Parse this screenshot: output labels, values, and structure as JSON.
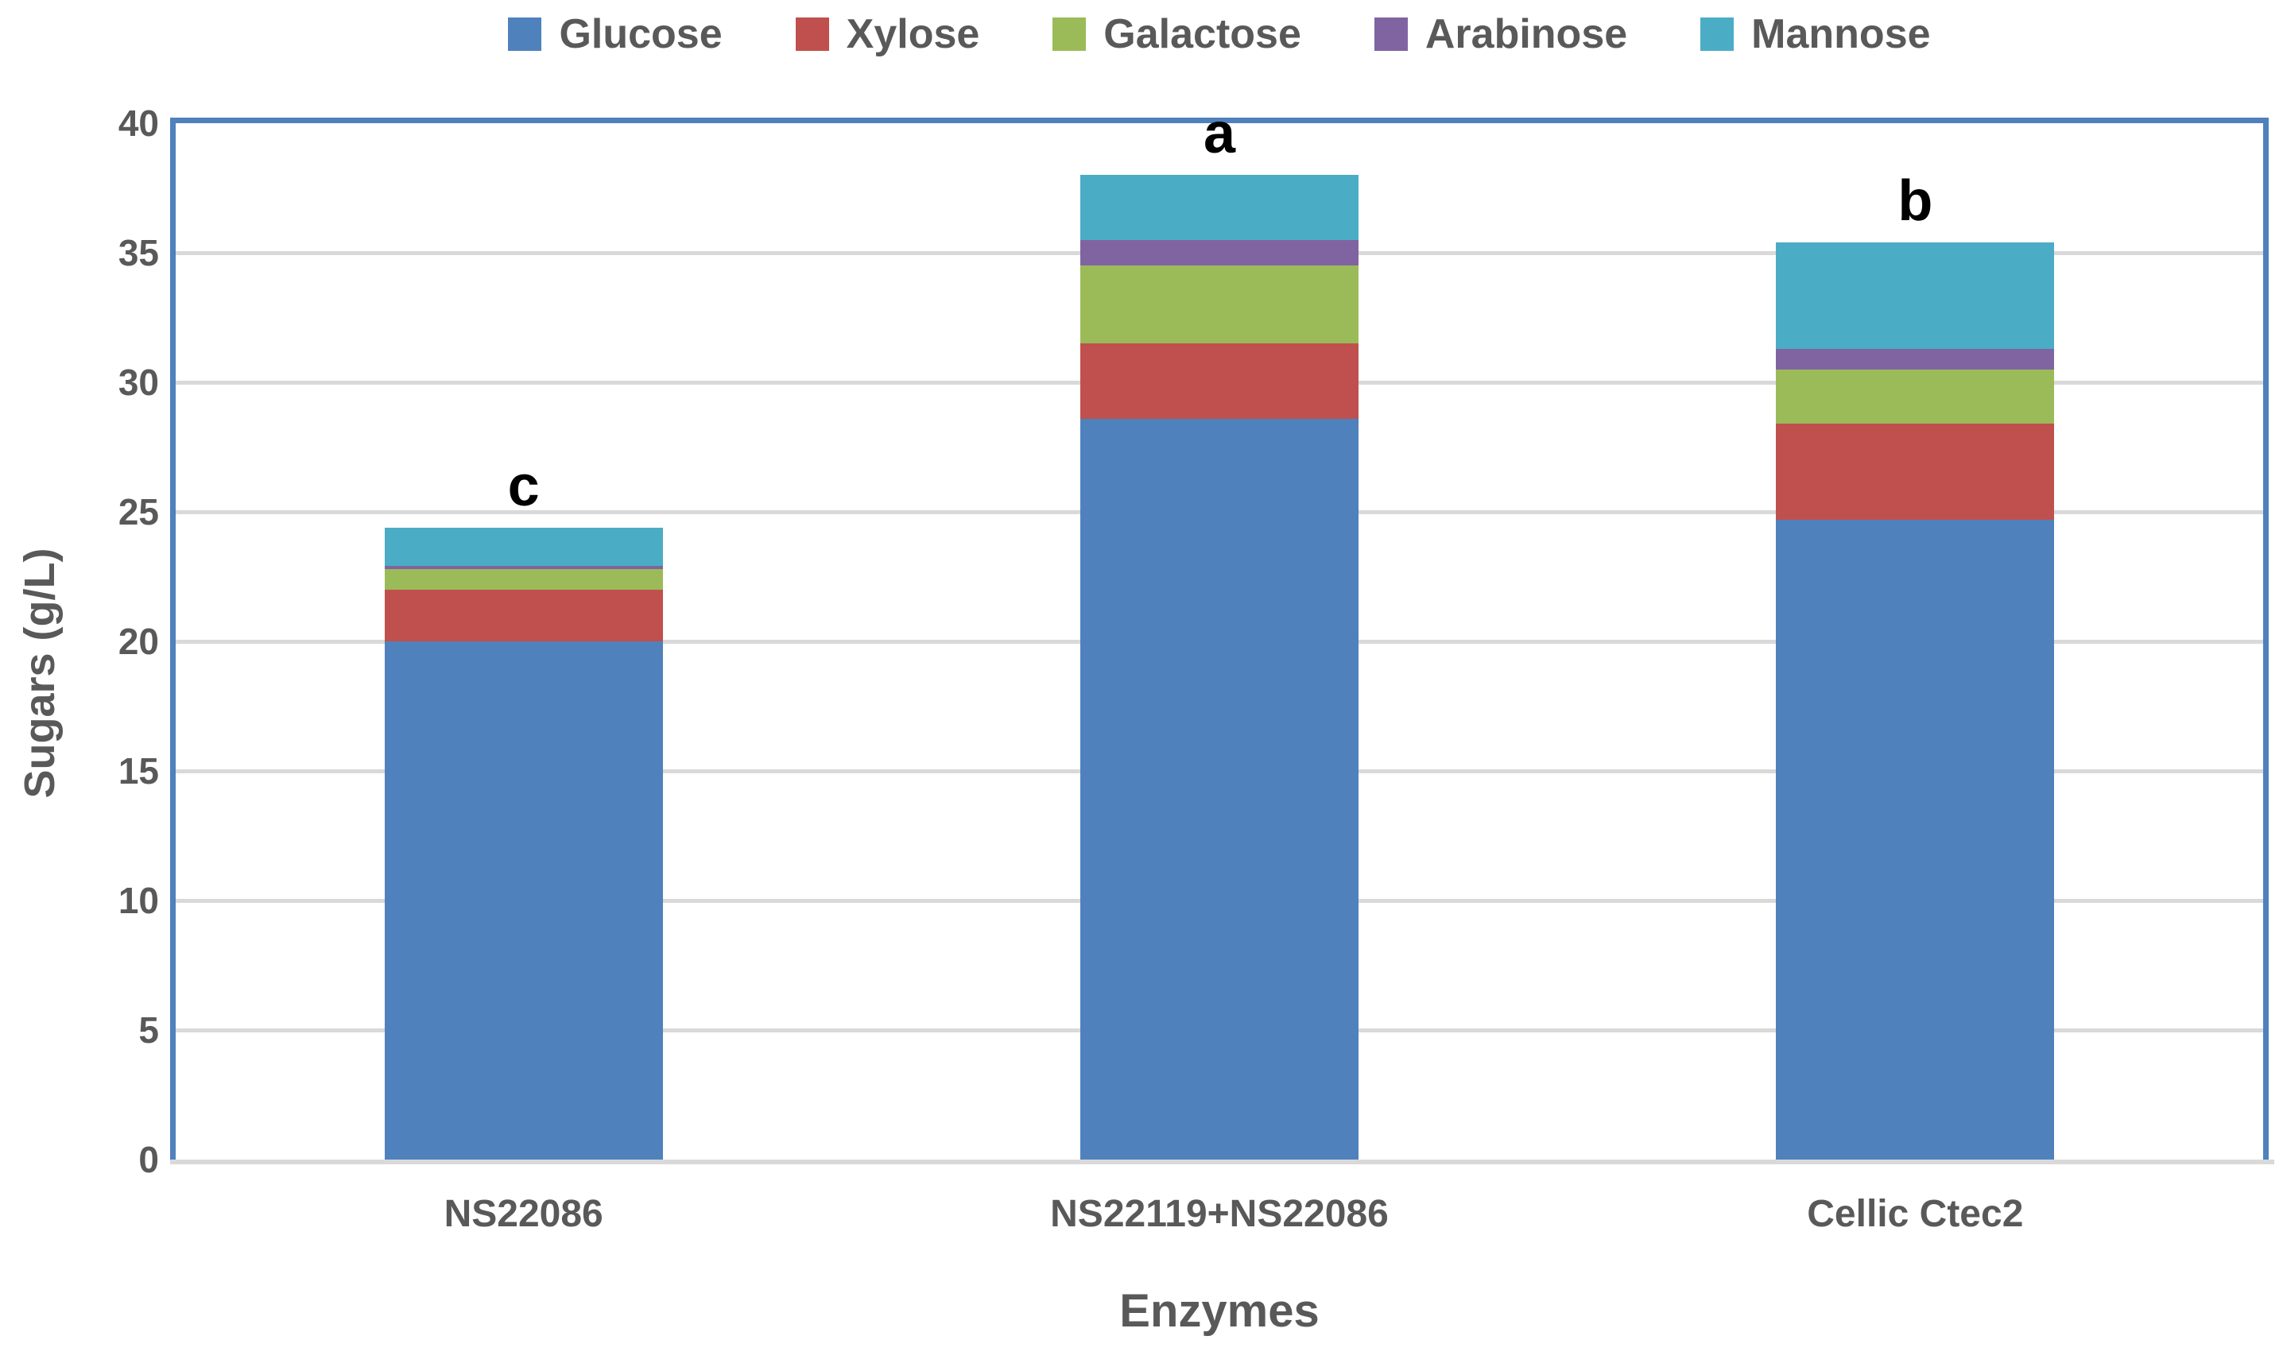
{
  "style": {
    "plot_border_color": "#4F81BD",
    "grid_color": "#D9D9D9",
    "text_color": "#595959",
    "annotation_color": "#000000",
    "background": "#FFFFFF"
  },
  "chart_data": {
    "type": "bar",
    "stacked": true,
    "title": "",
    "xlabel": "Enzymes",
    "ylabel": "Sugars (g/L)",
    "categories": [
      "NS22086",
      "NS22119+NS22086",
      "Cellic Ctec2"
    ],
    "series": [
      {
        "name": "Glucose",
        "color": "#4F81BD",
        "values": [
          20.0,
          28.6,
          24.7
        ]
      },
      {
        "name": "Xylose",
        "color": "#C0504D",
        "values": [
          2.0,
          2.9,
          3.7
        ]
      },
      {
        "name": "Galactose",
        "color": "#9BBB59",
        "values": [
          0.8,
          3.0,
          2.1
        ]
      },
      {
        "name": "Arabinose",
        "color": "#8064A2",
        "values": [
          0.1,
          1.0,
          0.8
        ]
      },
      {
        "name": "Mannose",
        "color": "#4BACC6",
        "values": [
          1.5,
          2.5,
          4.1
        ]
      }
    ],
    "stack_totals": [
      24.4,
      38.0,
      35.4
    ],
    "bar_annotations": [
      "c",
      "a",
      "b"
    ],
    "ylim": [
      0,
      40
    ],
    "ytick_step": 5,
    "y_tick_labels": [
      "0",
      "5",
      "10",
      "15",
      "20",
      "25",
      "30",
      "35",
      "40"
    ],
    "grid": true,
    "legend_position": "top"
  }
}
